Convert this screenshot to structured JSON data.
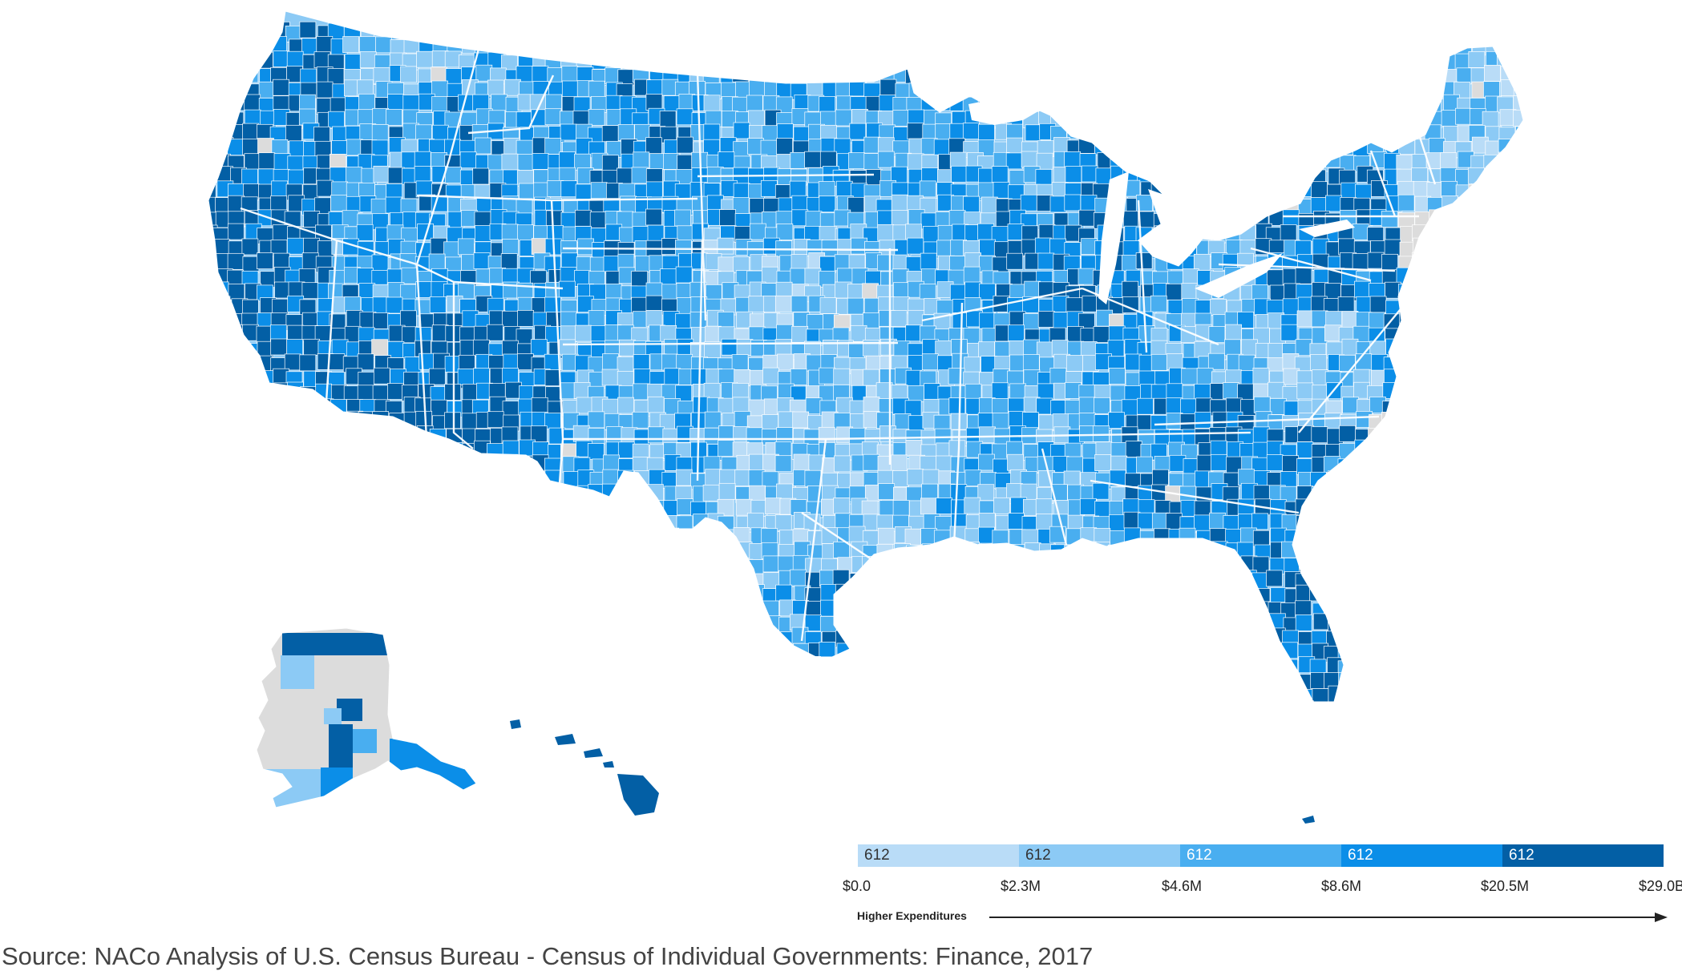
{
  "map": {
    "type": "choropleth",
    "region": "United States counties",
    "no_data_color": "#dcdcdc",
    "border_color": "#ffffff"
  },
  "legend": {
    "bins": [
      {
        "count": "612",
        "color": "#b9dcf7",
        "text_color": "#333333"
      },
      {
        "count": "612",
        "color": "#8ccaf5",
        "text_color": "#333333"
      },
      {
        "count": "612",
        "color": "#49aef0",
        "text_color": "#ffffff"
      },
      {
        "count": "612",
        "color": "#0b8ee8",
        "text_color": "#ffffff"
      },
      {
        "count": "612",
        "color": "#035fa5",
        "text_color": "#ffffff"
      }
    ],
    "ticks": [
      "$0.0",
      "$2.3M",
      "$4.6M",
      "$8.6M",
      "$20.5M",
      "$29.0B"
    ],
    "caption": "Higher Expenditures"
  },
  "source": "Source: NACo Analysis of U.S. Census Bureau - Census of Individual Governments: Finance, 2017"
}
